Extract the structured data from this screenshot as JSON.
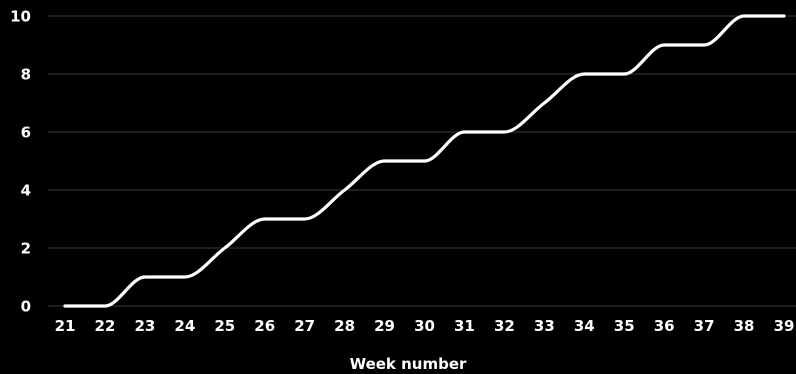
{
  "chart_data": {
    "type": "line",
    "title": "",
    "xlabel": "Week number",
    "ylabel": "",
    "x": [
      21,
      22,
      23,
      24,
      25,
      26,
      27,
      28,
      29,
      30,
      31,
      32,
      33,
      34,
      35,
      36,
      37,
      38,
      39
    ],
    "series": [
      {
        "values": [
          0,
          0,
          1,
          1,
          2,
          3,
          3,
          4,
          5,
          5,
          6,
          6,
          7,
          8,
          8,
          9,
          9,
          10,
          10
        ]
      }
    ],
    "xlim": [
      21,
      39
    ],
    "ylim": [
      0,
      10
    ],
    "yticks": [
      0,
      2,
      4,
      6,
      8,
      10
    ],
    "xticks": [
      21,
      22,
      23,
      24,
      25,
      26,
      27,
      28,
      29,
      30,
      31,
      32,
      33,
      34,
      35,
      36,
      37,
      38,
      39
    ],
    "grid": "horizontal",
    "legend": "none",
    "colors": {
      "background": "#000000",
      "line": "#ffffff",
      "grid": "#3a3a3a",
      "text": "#ffffff"
    }
  }
}
